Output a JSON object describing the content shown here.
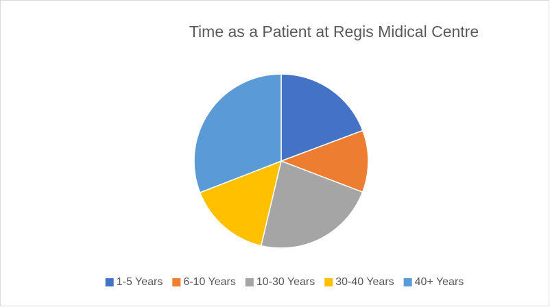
{
  "chart_data": {
    "type": "pie",
    "title": "Time as a Patient at Regis Midical Centre",
    "categories": [
      "1-5 Years",
      "6-10 Years",
      "10-30 Years",
      "30-40 Years",
      "40+ Years"
    ],
    "values": [
      19.3,
      11.5,
      22.9,
      15.4,
      30.9
    ],
    "colors": [
      "#4472c4",
      "#ed7d31",
      "#a5a5a5",
      "#ffc000",
      "#5b9bd5"
    ],
    "legend": "bottom"
  }
}
